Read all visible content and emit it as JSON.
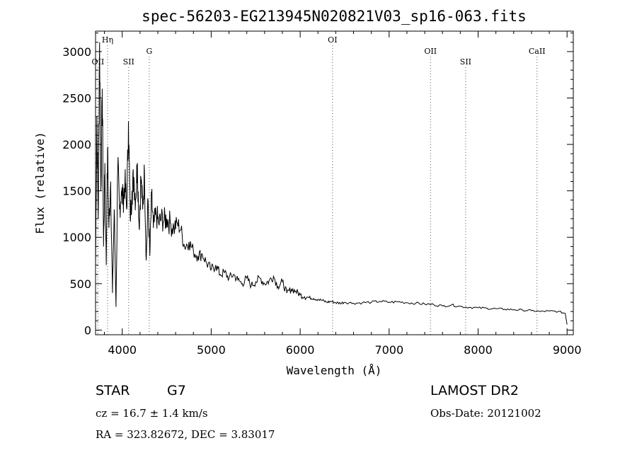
{
  "chart_data": {
    "type": "line",
    "title": "spec-56203-EG213945N020821V03_sp16-063.fits",
    "xlabel": "Wavelength (Å)",
    "ylabel": "Flux (relative)",
    "xlim": [
      3700,
      9070
    ],
    "ylim": [
      -50,
      3220
    ],
    "xticks": [
      4000,
      5000,
      6000,
      7000,
      8000,
      9000
    ],
    "yticks": [
      0,
      500,
      1000,
      1500,
      2000,
      2500,
      3000
    ],
    "grid": false,
    "line_color": "#000000",
    "series": [
      {
        "x": [
          3700,
          3715,
          3730,
          3745,
          3760,
          3775,
          3790,
          3805,
          3820,
          3835,
          3850,
          3870,
          3890,
          3910,
          3930,
          3950,
          3970,
          3990,
          4010,
          4030,
          4050,
          4070,
          4090,
          4110,
          4130,
          4150,
          4170,
          4190,
          4210,
          4230,
          4250,
          4270,
          4290,
          4310,
          4330,
          4350,
          4380,
          4410,
          4440,
          4470,
          4500,
          4540,
          4580,
          4620,
          4660,
          4700,
          4750,
          4800,
          4850,
          4900,
          4950,
          5000,
          5050,
          5100,
          5150,
          5200,
          5250,
          5300,
          5350,
          5400,
          5450,
          5500,
          5550,
          5600,
          5650,
          5700,
          5750,
          5800,
          5850,
          5900,
          5950,
          6000,
          6050,
          6100,
          6150,
          6200,
          6250,
          6300,
          6350,
          6400,
          6450,
          6500,
          6600,
          6700,
          6800,
          6900,
          7000,
          7100,
          7200,
          7300,
          7400,
          7500,
          7600,
          7700,
          7800,
          7900,
          8000,
          8100,
          8200,
          8300,
          8400,
          8500,
          8600,
          8700,
          8800,
          8900,
          8980,
          9000
        ],
        "y": [
          700,
          2300,
          1200,
          3100,
          1500,
          2600,
          900,
          1800,
          700,
          1950,
          1100,
          1600,
          400,
          1300,
          250,
          1750,
          1300,
          1500,
          1400,
          1600,
          1300,
          2250,
          1200,
          1500,
          1650,
          1400,
          1800,
          1100,
          1650,
          1300,
          1700,
          750,
          1400,
          800,
          1450,
          1100,
          1250,
          1150,
          1200,
          1180,
          1200,
          1150,
          1100,
          1150,
          1080,
          900,
          950,
          850,
          800,
          820,
          720,
          650,
          700,
          600,
          620,
          560,
          600,
          540,
          500,
          560,
          480,
          520,
          560,
          500,
          530,
          580,
          470,
          520,
          400,
          440,
          420,
          380,
          360,
          350,
          340,
          330,
          320,
          300,
          310,
          295,
          290,
          300,
          290,
          295,
          300,
          310,
          300,
          305,
          295,
          290,
          280,
          275,
          260,
          270,
          255,
          245,
          240,
          235,
          230,
          225,
          220,
          215,
          210,
          200,
          205,
          200,
          180,
          60
        ]
      }
    ],
    "lines": [
      {
        "label": "OII",
        "x": 3727
      },
      {
        "label": "Hη",
        "x": 3835
      },
      {
        "label": "SII",
        "x": 4072
      },
      {
        "label": "G",
        "x": 4304
      },
      {
        "label": "OI",
        "x": 6364
      },
      {
        "label": "OII",
        "x": 7465
      },
      {
        "label": "SII",
        "x": 7860
      },
      {
        "label": "CaII",
        "x": 8662
      }
    ]
  },
  "info": {
    "object_class": "STAR",
    "subclass": "G7",
    "cz": "cz = 16.7 ± 1.4 km/s",
    "coords": "RA = 323.82672, DEC =   3.83017",
    "survey": "LAMOST DR2",
    "obs_date": "Obs-Date: 20121002"
  }
}
